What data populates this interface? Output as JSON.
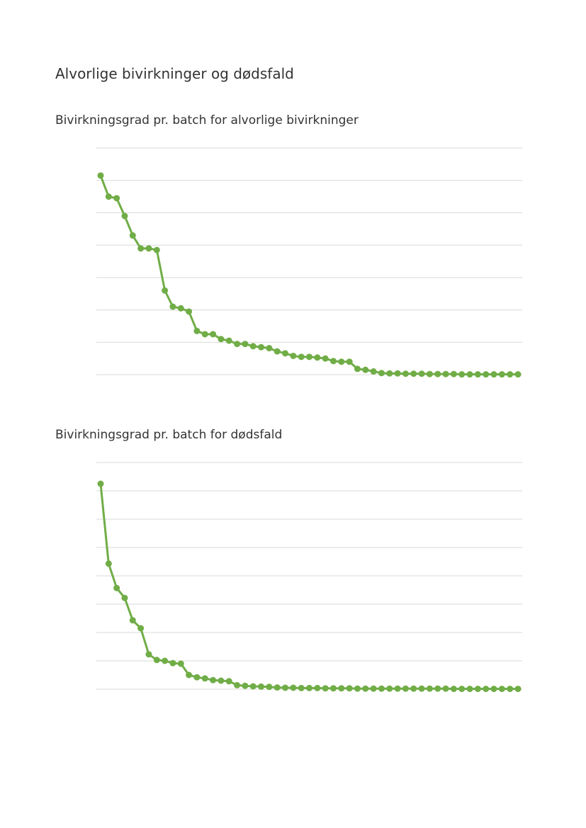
{
  "page": {
    "title": "Alvorlige bivirkninger og dødsfald"
  },
  "chart_data": [
    {
      "type": "line",
      "title": "Bivirkningsgrad pr. batch for alvorlige bivirkninger",
      "xlabel": "",
      "ylabel": "",
      "ylim": [
        0,
        7
      ],
      "grid": true,
      "color": "#70AD47",
      "x": [
        1,
        2,
        3,
        4,
        5,
        6,
        7,
        8,
        9,
        10,
        11,
        12,
        13,
        14,
        15,
        16,
        17,
        18,
        19,
        20,
        21,
        22,
        23,
        24,
        25,
        26,
        27,
        28,
        29,
        30,
        31,
        32,
        33,
        34,
        35,
        36,
        37,
        38,
        39,
        40,
        41,
        42,
        43,
        44,
        45,
        46,
        47,
        48,
        49,
        50,
        51,
        52,
        53
      ],
      "values": [
        6.15,
        5.5,
        5.45,
        4.9,
        4.3,
        3.9,
        3.9,
        3.85,
        2.6,
        2.1,
        2.05,
        1.95,
        1.35,
        1.25,
        1.25,
        1.1,
        1.05,
        0.95,
        0.95,
        0.88,
        0.85,
        0.82,
        0.72,
        0.66,
        0.58,
        0.55,
        0.55,
        0.53,
        0.5,
        0.42,
        0.4,
        0.4,
        0.18,
        0.15,
        0.1,
        0.05,
        0.04,
        0.04,
        0.03,
        0.03,
        0.03,
        0.02,
        0.02,
        0.02,
        0.02,
        0.01,
        0.01,
        0.01,
        0.01,
        0.01,
        0.01,
        0.01,
        0.01
      ]
    },
    {
      "type": "line",
      "title": "Bivirkningsgrad pr. batch for dødsfald",
      "xlabel": "",
      "ylabel": "",
      "ylim": [
        0,
        8
      ],
      "grid": true,
      "color": "#70AD47",
      "x": [
        1,
        2,
        3,
        4,
        5,
        6,
        7,
        8,
        9,
        10,
        11,
        12,
        13,
        14,
        15,
        16,
        17,
        18,
        19,
        20,
        21,
        22,
        23,
        24,
        25,
        26,
        27,
        28,
        29,
        30,
        31,
        32,
        33,
        34,
        35,
        36,
        37,
        38,
        39,
        40,
        41,
        42,
        43,
        44,
        45,
        46,
        47,
        48,
        49,
        50,
        51,
        52,
        53
      ],
      "values": [
        7.25,
        4.43,
        3.57,
        3.22,
        2.43,
        2.15,
        1.23,
        1.03,
        1.0,
        0.92,
        0.9,
        0.5,
        0.42,
        0.38,
        0.32,
        0.3,
        0.28,
        0.14,
        0.12,
        0.1,
        0.09,
        0.08,
        0.06,
        0.05,
        0.05,
        0.04,
        0.04,
        0.04,
        0.03,
        0.03,
        0.03,
        0.03,
        0.02,
        0.02,
        0.02,
        0.02,
        0.02,
        0.02,
        0.02,
        0.02,
        0.02,
        0.02,
        0.02,
        0.02,
        0.01,
        0.01,
        0.01,
        0.01,
        0.01,
        0.01,
        0.01,
        0.01,
        0.01
      ]
    }
  ]
}
